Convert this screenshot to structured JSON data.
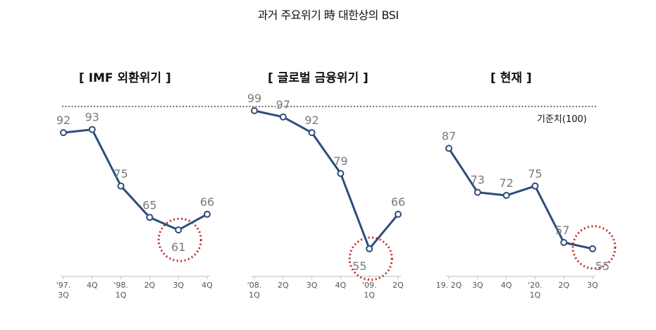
{
  "title": "과거 주요위기 時 대한상의 BSI",
  "reference_label": "기준치(100)",
  "chart_data": [
    {
      "type": "line",
      "title": "[ IMF 외환위기 ]",
      "categories": [
        [
          "'97.",
          "3Q"
        ],
        [
          "4Q"
        ],
        [
          "'98.",
          "1Q"
        ],
        [
          "2Q"
        ],
        [
          "3Q"
        ],
        [
          "4Q"
        ]
      ],
      "values": [
        92,
        93,
        75,
        65,
        61,
        66
      ],
      "highlight_index": 4,
      "colors": {
        "line": "#2e4d7b",
        "highlight": "#c62828"
      }
    },
    {
      "type": "line",
      "title": "[ 글로벌 금융위기 ]",
      "categories": [
        [
          "'08.",
          "1Q"
        ],
        [
          "2Q"
        ],
        [
          "3Q"
        ],
        [
          "4Q"
        ],
        [
          "'09.",
          "1Q"
        ],
        [
          "2Q"
        ]
      ],
      "values": [
        99,
        97,
        92,
        79,
        55,
        66
      ],
      "highlight_index": 4,
      "colors": {
        "line": "#2e4d7b",
        "highlight": "#c62828"
      }
    },
    {
      "type": "line",
      "title": "[ 현재 ]",
      "categories": [
        [
          "19. 2Q"
        ],
        [
          "3Q"
        ],
        [
          "4Q"
        ],
        [
          "'20.",
          "1Q"
        ],
        [
          "2Q"
        ],
        [
          "3Q"
        ]
      ],
      "values": [
        87,
        73,
        72,
        75,
        57,
        55
      ],
      "highlight_index": 5,
      "colors": {
        "line": "#2e4d7b",
        "highlight": "#c62828"
      }
    }
  ]
}
